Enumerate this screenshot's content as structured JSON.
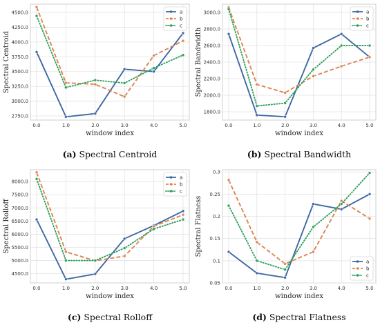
{
  "series_styles": [
    {
      "name": "a",
      "color": "#3e68a3",
      "dash": "solid"
    },
    {
      "name": "b",
      "color": "#dd8452",
      "dash": "dashed"
    },
    {
      "name": "c",
      "color": "#2fa05a",
      "dash": "dotted"
    }
  ],
  "chart_data": [
    {
      "type": "line",
      "panel": "a",
      "caption_letter": "(a)",
      "caption_text": "Spectral Centroid",
      "xlabel": "window index",
      "ylabel": "Spectral Centroid",
      "x": [
        0,
        1,
        2,
        3,
        4,
        5
      ],
      "x_ticks": [
        "0.0",
        "1.0",
        "2.0",
        "3.0",
        "4.0",
        "5.0"
      ],
      "y_ticks": [
        "2750.0",
        "3000.0",
        "3250.0",
        "3500.0",
        "3750.0",
        "4000.0",
        "4250.0",
        "4500.0"
      ],
      "ylim": [
        2680,
        4640
      ],
      "legend_position": "top-right",
      "series": [
        {
          "name": "a",
          "values": [
            3830,
            2735,
            2790,
            3540,
            3500,
            4150
          ]
        },
        {
          "name": "b",
          "values": [
            4590,
            3310,
            3285,
            3075,
            3770,
            4020
          ]
        },
        {
          "name": "c",
          "values": [
            4440,
            3230,
            3355,
            3305,
            3560,
            3780
          ]
        }
      ]
    },
    {
      "type": "line",
      "panel": "b",
      "caption_letter": "(b)",
      "caption_text": "Spectral Bandwidth",
      "xlabel": "window index",
      "ylabel": "Spectral Bandwidth",
      "x": [
        0,
        1,
        2,
        3,
        4,
        5
      ],
      "x_ticks": [
        "0.0",
        "1.0",
        "2.0",
        "3.0",
        "4.0",
        "5.0"
      ],
      "y_ticks": [
        "1800.0",
        "2000.0",
        "2200.0",
        "2400.0",
        "2600.0",
        "2800.0",
        "3000.0"
      ],
      "ylim": [
        1700,
        3100
      ],
      "legend_position": "top-right",
      "series": [
        {
          "name": "a",
          "values": [
            2740,
            1760,
            1740,
            2570,
            2740,
            2460
          ]
        },
        {
          "name": "b",
          "values": [
            3060,
            2130,
            2030,
            2230,
            2350,
            2460
          ]
        },
        {
          "name": "c",
          "values": [
            3040,
            1870,
            1905,
            2310,
            2600,
            2600
          ]
        }
      ]
    },
    {
      "type": "line",
      "panel": "c",
      "caption_letter": "(c)",
      "caption_text": "Spectral Rolloff",
      "xlabel": "window index",
      "ylabel": "Spectral Rolloff",
      "x": [
        0,
        1,
        2,
        3,
        4,
        5
      ],
      "x_ticks": [
        "0.0",
        "1.0",
        "2.0",
        "3.0",
        "4.0",
        "5.0"
      ],
      "y_ticks": [
        "4500.0",
        "5000.0",
        "5500.0",
        "6000.0",
        "6500.0",
        "7000.0",
        "7500.0",
        "8000.0"
      ],
      "ylim": [
        4150,
        8450
      ],
      "legend_position": "top-right",
      "series": [
        {
          "name": "a",
          "values": [
            6560,
            4290,
            4490,
            5830,
            6330,
            6880
          ]
        },
        {
          "name": "b",
          "values": [
            8350,
            5330,
            4990,
            5170,
            6300,
            6740
          ]
        },
        {
          "name": "c",
          "values": [
            8100,
            5000,
            5000,
            5470,
            6200,
            6560
          ]
        }
      ]
    },
    {
      "type": "line",
      "panel": "d",
      "caption_letter": "(d)",
      "caption_text": "Spectral Flatness",
      "xlabel": "window index",
      "ylabel": "Spectral Flatness",
      "x": [
        0,
        1,
        2,
        3,
        4,
        5
      ],
      "x_ticks": [
        "0.0",
        "1.0",
        "2.0",
        "3.0",
        "4.0",
        "5.0"
      ],
      "y_ticks": [
        "0.05",
        "0.1",
        "0.15",
        "0.2",
        "0.25",
        "0.3"
      ],
      "ylim": [
        0.05,
        0.305
      ],
      "legend_position": "bottom-right",
      "series": [
        {
          "name": "a",
          "values": [
            0.12,
            0.072,
            0.062,
            0.228,
            0.216,
            0.25
          ]
        },
        {
          "name": "b",
          "values": [
            0.282,
            0.142,
            0.093,
            0.12,
            0.235,
            0.195
          ]
        },
        {
          "name": "c",
          "values": [
            0.224,
            0.1,
            0.08,
            0.176,
            0.228,
            0.298
          ]
        }
      ]
    }
  ]
}
